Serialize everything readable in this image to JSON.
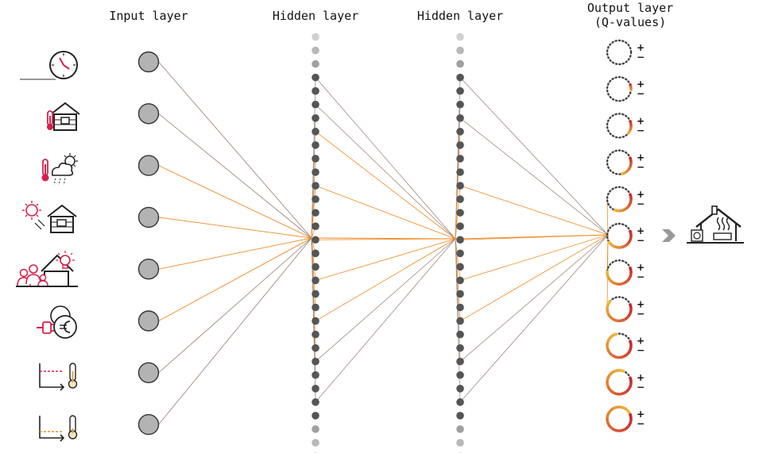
{
  "headers": {
    "input": "Input layer",
    "hidden1": "Hidden layer",
    "hidden2": "Hidden layer",
    "output_line1": "Output layer",
    "output_line2": "(Q-values)"
  },
  "input_icons": [
    "clock-icon",
    "indoor-temperature-house-icon",
    "outdoor-weather-thermometer-icon",
    "solar-radiation-house-icon",
    "occupancy-lighting-house-icon",
    "electricity-price-plug-euro-icon",
    "temperature-setpoint-upper-icon",
    "temperature-setpoint-lower-icon"
  ],
  "input_neuron_count": 8,
  "hidden_layers": [
    {
      "name": "hidden-layer-1",
      "neuron_count": 32,
      "faded_top": 3,
      "faded_bottom": 3
    },
    {
      "name": "hidden-layer-2",
      "neuron_count": 32,
      "faded_top": 3,
      "faded_bottom": 3
    }
  ],
  "output_neurons": [
    {
      "fill_fraction": 0.0,
      "plus": "+",
      "minus": "−"
    },
    {
      "fill_fraction": 0.1,
      "plus": "+",
      "minus": "−"
    },
    {
      "fill_fraction": 0.2,
      "plus": "+",
      "minus": "−"
    },
    {
      "fill_fraction": 0.3,
      "plus": "+",
      "minus": "−"
    },
    {
      "fill_fraction": 0.4,
      "plus": "+",
      "minus": "−"
    },
    {
      "fill_fraction": 0.5,
      "plus": "+",
      "minus": "−"
    },
    {
      "fill_fraction": 0.6,
      "plus": "+",
      "minus": "−"
    },
    {
      "fill_fraction": 0.7,
      "plus": "+",
      "minus": "−"
    },
    {
      "fill_fraction": 0.8,
      "plus": "+",
      "minus": "−"
    },
    {
      "fill_fraction": 0.9,
      "plus": "+",
      "minus": "−"
    },
    {
      "fill_fraction": 1.0,
      "plus": "+",
      "minus": "−"
    }
  ],
  "action_icon": "heated-house-heat-pump-icon",
  "arrow_icon": "chevron-right-icon",
  "colors": {
    "input_neuron_fill": "#b3b3b3",
    "neuron_outline": "#333333",
    "hidden_neuron": "#555555",
    "hidden_faded": "#d0d0d0",
    "connection_orange": "#ef8a24",
    "connection_gray": "#a08a80",
    "icon_red": "#d6204a",
    "icon_dark": "#222222",
    "output_grad_low": "#f2c43a",
    "output_grad_high": "#c8262f",
    "chevron": "#999999"
  }
}
